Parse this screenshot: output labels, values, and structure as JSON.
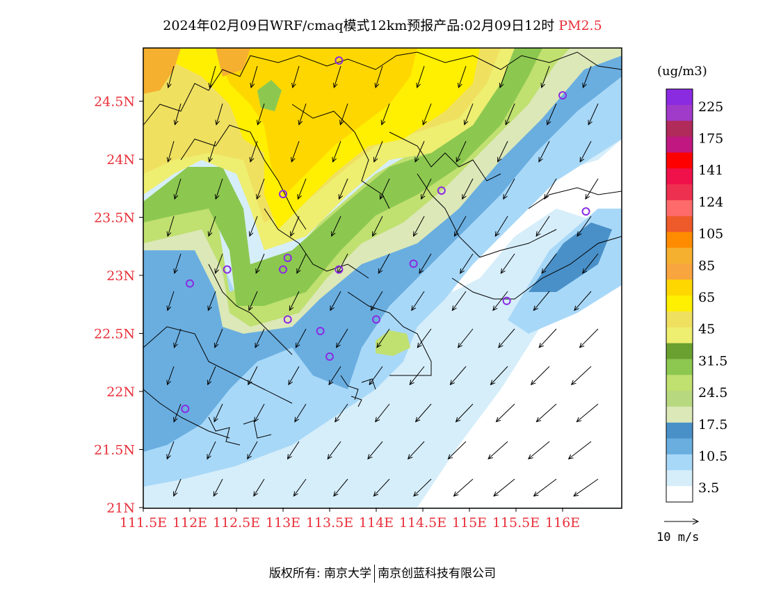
{
  "title": {
    "main": "2024年02月09日WRF/cmaq模式12km预报产品:02月09日12时",
    "species": "PM2.5"
  },
  "axes": {
    "y_labels": [
      "24.5N",
      "24N",
      "23.5N",
      "23N",
      "22.5N",
      "22N",
      "21.5N",
      "21N"
    ],
    "x_labels": [
      "111.5E",
      "112E",
      "112.5E",
      "113E",
      "113.5E",
      "114E",
      "114.5E",
      "115E",
      "115.5E",
      "116E"
    ]
  },
  "legend": {
    "unit": "(ug/m3)",
    "labels": [
      "225",
      "175",
      "141",
      "124",
      "105",
      "85",
      "65",
      "45",
      "31.5",
      "24.5",
      "17.5",
      "10.5",
      "3.5"
    ],
    "colors_top_to_bottom": [
      "#8a2be2",
      "#a03ac8",
      "#b02a5a",
      "#c01880",
      "#ff0000",
      "#f0104a",
      "#ee3050",
      "#ff6a6a",
      "#ee5a2a",
      "#ff8c00",
      "#f5b030",
      "#f8a540",
      "#ffd700",
      "#ffef00",
      "#f0e060",
      "#eeee70",
      "#6aa030",
      "#8cc850",
      "#c0e070",
      "#b8d880",
      "#dce8b8",
      "#4a90c8",
      "#6aaee0",
      "#a8d8f8",
      "#d6eefa",
      "#ffffff"
    ],
    "wind_scale_label": "10 m/s"
  },
  "stations": [
    {
      "lon": 113.6,
      "lat": 24.85
    },
    {
      "lon": 116.0,
      "lat": 24.55
    },
    {
      "lon": 113.0,
      "lat": 23.7
    },
    {
      "lon": 114.7,
      "lat": 23.73
    },
    {
      "lon": 116.25,
      "lat": 23.55
    },
    {
      "lon": 113.05,
      "lat": 23.15
    },
    {
      "lon": 112.4,
      "lat": 23.05
    },
    {
      "lon": 113.0,
      "lat": 23.05
    },
    {
      "lon": 113.6,
      "lat": 23.05
    },
    {
      "lon": 114.4,
      "lat": 23.1
    },
    {
      "lon": 112.0,
      "lat": 22.93
    },
    {
      "lon": 115.4,
      "lat": 22.78
    },
    {
      "lon": 113.05,
      "lat": 22.62
    },
    {
      "lon": 113.4,
      "lat": 22.52
    },
    {
      "lon": 114.0,
      "lat": 22.62
    },
    {
      "lon": 113.5,
      "lat": 22.3
    },
    {
      "lon": 111.95,
      "lat": 21.85
    }
  ],
  "footer": {
    "left": "版权所有: 南京大学",
    "right": "南京创蓝科技有限公司"
  }
}
